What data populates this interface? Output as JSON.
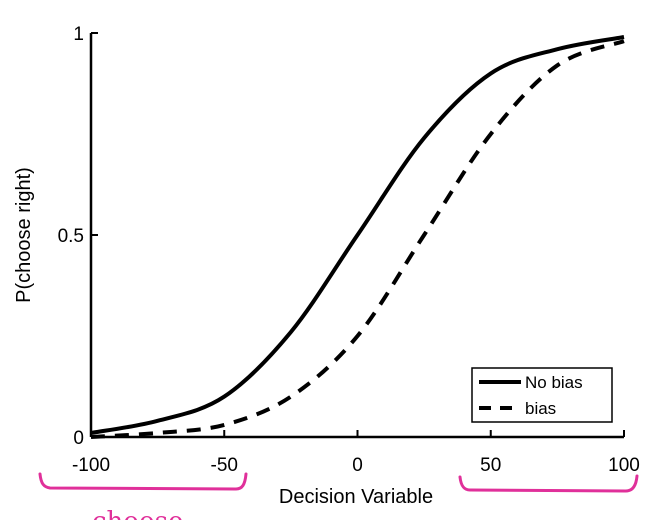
{
  "chart_data": {
    "type": "line",
    "title": "",
    "xlabel": "Decision Variable",
    "ylabel": "P(choose right)",
    "xlim": [
      -100,
      100
    ],
    "ylim": [
      0,
      1
    ],
    "x_ticks": [
      -100,
      -50,
      0,
      50,
      100
    ],
    "x_tick_labels": [
      "-100",
      "-50",
      "0",
      "50",
      "100"
    ],
    "y_ticks": [
      0,
      0.5,
      1
    ],
    "y_tick_labels": [
      "0",
      "0.5",
      "1"
    ],
    "grid": false,
    "legend_position": "bottom-right",
    "series": [
      {
        "name": "No bias",
        "style": "solid",
        "x": [
          -100,
          -75,
          -50,
          -25,
          0,
          25,
          50,
          75,
          100
        ],
        "y": [
          0.01,
          0.04,
          0.1,
          0.26,
          0.5,
          0.74,
          0.9,
          0.96,
          0.99
        ]
      },
      {
        "name": "bias",
        "style": "dashed",
        "x": [
          -100,
          -75,
          -50,
          -25,
          0,
          25,
          50,
          75,
          100
        ],
        "y": [
          0.0,
          0.01,
          0.03,
          0.1,
          0.25,
          0.5,
          0.75,
          0.92,
          0.98
        ]
      }
    ],
    "annotations": [
      {
        "text": "choose",
        "color": "#e0309a"
      }
    ]
  },
  "colors": {
    "axis": "#000000",
    "line": "#000000",
    "annotation": "#e0309a"
  }
}
